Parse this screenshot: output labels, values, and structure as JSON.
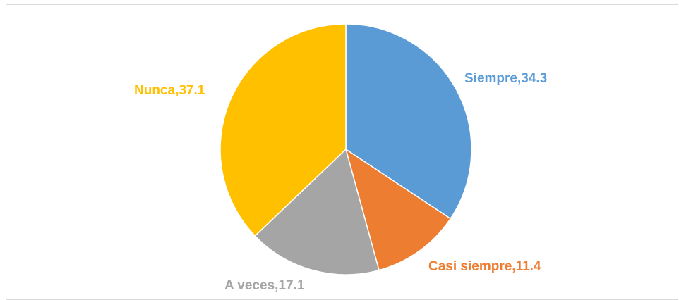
{
  "chart_data": {
    "type": "pie",
    "title": "",
    "categories": [
      "Siempre",
      "Casi siempre",
      "A veces",
      "Nunca"
    ],
    "values": [
      34.3,
      11.4,
      17.1,
      37.1
    ],
    "labels": [
      "Siempre,34.3",
      "Casi siempre,11.4",
      "A veces,17.1",
      "Nunca,37.1"
    ],
    "colors": [
      "#5b9bd5",
      "#ed7d31",
      "#a5a5a5",
      "#ffc000"
    ],
    "legend": "none",
    "start_angle": "12 o'clock",
    "direction": "clockwise"
  }
}
